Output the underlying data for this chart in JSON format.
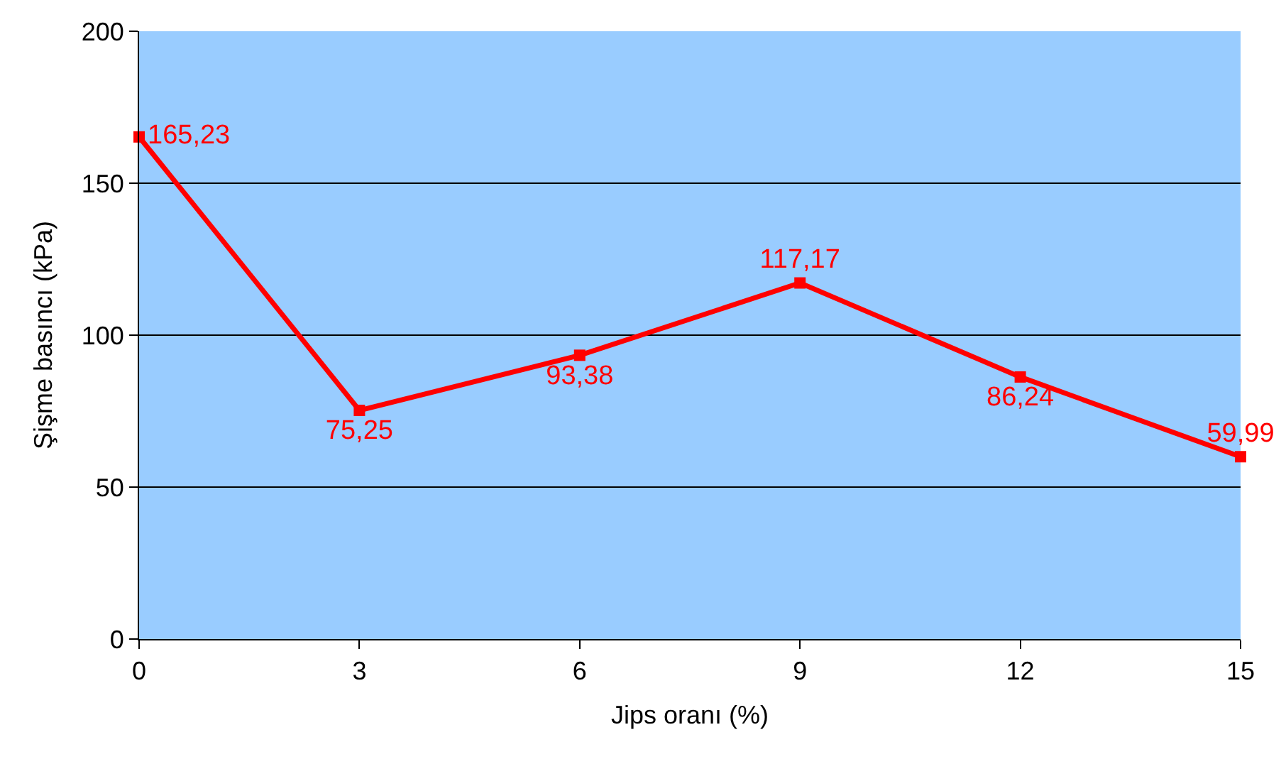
{
  "chart_data": {
    "type": "line",
    "xlabel": "Jips oranı (%)",
    "ylabel": "Şişme basıncı (kPa)",
    "x": [
      0,
      3,
      6,
      9,
      12,
      15
    ],
    "series": [
      {
        "color": "#ff0000",
        "values": [
          165.23,
          75.25,
          93.38,
          117.17,
          86.24,
          59.99
        ],
        "value_labels": [
          "165,23",
          "75,25",
          "93,38",
          "117,17",
          "86,24",
          "59,99"
        ]
      }
    ],
    "xlim": [
      0,
      15
    ],
    "xticks": [
      0,
      3,
      6,
      9,
      12,
      15
    ],
    "ylim": [
      0,
      200
    ],
    "yticks": [
      0,
      50,
      100,
      150,
      200
    ],
    "grid": "y",
    "marker": "square",
    "line_style": "solid",
    "legend": false
  }
}
